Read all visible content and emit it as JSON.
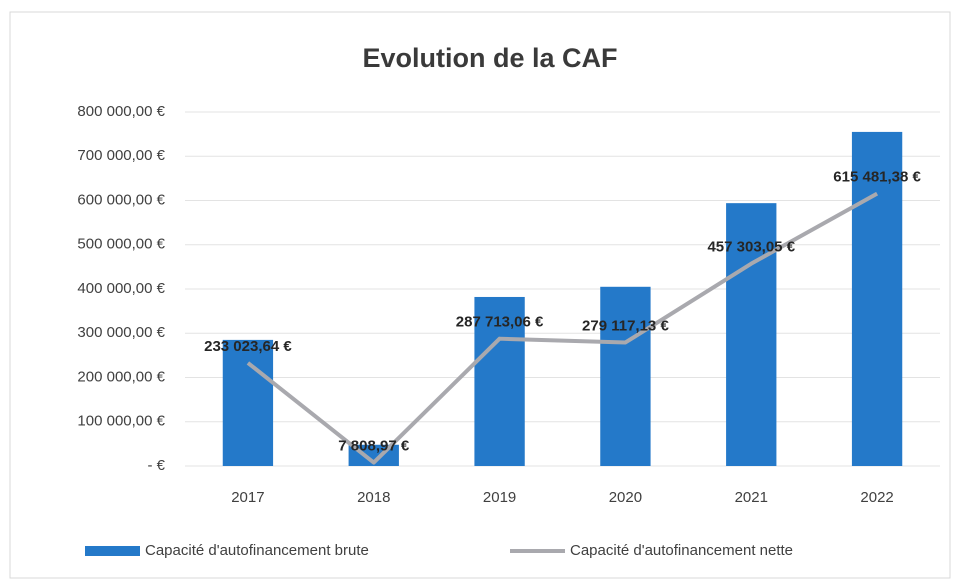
{
  "chart_data": {
    "type": "bar",
    "title": "Evolution de la CAF",
    "categories": [
      "2017",
      "2018",
      "2019",
      "2020",
      "2021",
      "2022"
    ],
    "series": [
      {
        "name": "Capacité d'autofinancement brute",
        "type": "bar",
        "color": "#2479c9",
        "values": [
          285000,
          48000,
          382000,
          405000,
          594000,
          755000
        ]
      },
      {
        "name": "Capacité d'autofinancement nette",
        "type": "line",
        "color": "#a9a9ae",
        "values": [
          233023.64,
          7808.97,
          287713.06,
          279117.13,
          457303.05,
          615481.38
        ],
        "value_labels": [
          "233 023,64 €",
          "7 808,97 €",
          "287 713,06 €",
          "279 117,13 €",
          "457 303,05 €",
          "615 481,38 €"
        ]
      }
    ],
    "ylim": [
      0,
      800000
    ],
    "yticks": [
      {
        "value": 0,
        "label": "-  €"
      },
      {
        "value": 100000,
        "label": "100 000,00 €"
      },
      {
        "value": 200000,
        "label": "200 000,00 €"
      },
      {
        "value": 300000,
        "label": "300 000,00 €"
      },
      {
        "value": 400000,
        "label": "400 000,00 €"
      },
      {
        "value": 500000,
        "label": "500 000,00 €"
      },
      {
        "value": 600000,
        "label": "600 000,00 €"
      },
      {
        "value": 700000,
        "label": "700 000,00 €"
      },
      {
        "value": 800000,
        "label": "800 000,00 €"
      }
    ],
    "grid": true,
    "legend": "bottom"
  }
}
